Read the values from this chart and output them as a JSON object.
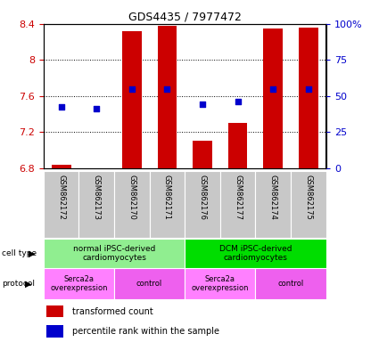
{
  "title": "GDS4435 / 7977472",
  "samples": [
    "GSM862172",
    "GSM862173",
    "GSM862170",
    "GSM862171",
    "GSM862176",
    "GSM862177",
    "GSM862174",
    "GSM862175"
  ],
  "red_values": [
    6.84,
    6.8,
    8.32,
    8.38,
    7.1,
    7.3,
    8.35,
    8.36
  ],
  "blue_values": [
    7.48,
    7.46,
    7.68,
    7.68,
    7.51,
    7.54,
    7.68,
    7.68
  ],
  "ylim_left": [
    6.8,
    8.4
  ],
  "ylim_right": [
    0,
    100
  ],
  "right_ticks": [
    0,
    25,
    50,
    75,
    100
  ],
  "right_labels": [
    "0",
    "25",
    "50",
    "75",
    "100%"
  ],
  "left_ticks": [
    6.8,
    7.2,
    7.6,
    8.0,
    8.4
  ],
  "left_labels": [
    "6.8",
    "7.2",
    "7.6",
    "8",
    "8.4"
  ],
  "cell_type_groups": [
    {
      "label": "normal iPSC-derived\ncardiomyocytes",
      "start": 0,
      "end": 4,
      "color": "#90EE90"
    },
    {
      "label": "DCM iPSC-derived\ncardiomyocytes",
      "start": 4,
      "end": 8,
      "color": "#00DD00"
    }
  ],
  "protocol_groups": [
    {
      "label": "Serca2a\noverexpression",
      "start": 0,
      "end": 2,
      "color": "#FF80FF"
    },
    {
      "label": "control",
      "start": 2,
      "end": 4,
      "color": "#EE60EE"
    },
    {
      "label": "Serca2a\noverexpression",
      "start": 4,
      "end": 6,
      "color": "#FF80FF"
    },
    {
      "label": "control",
      "start": 6,
      "end": 8,
      "color": "#EE60EE"
    }
  ],
  "bar_color": "#CC0000",
  "dot_color": "#0000CC",
  "bar_bottom": 6.8,
  "grid_color": "#000000",
  "left_tick_color": "#CC0000",
  "right_tick_color": "#0000CC",
  "title_color": "#000000",
  "sample_bg_color": "#C8C8C8",
  "cell_type_label_fontsize": 6.5,
  "protocol_label_fontsize": 6.0,
  "sample_label_fontsize": 6.0,
  "legend_fontsize": 7.0,
  "title_fontsize": 9
}
